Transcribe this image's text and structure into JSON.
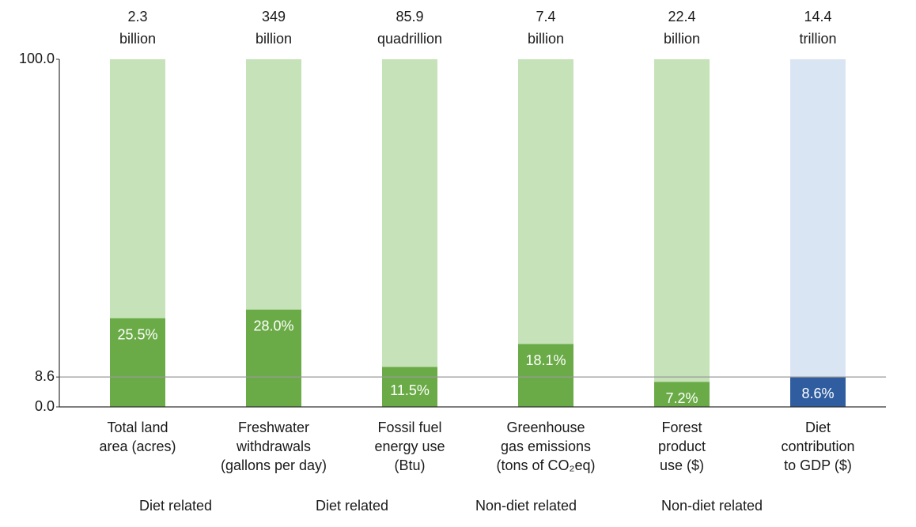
{
  "chart_data": {
    "type": "bar",
    "categories": [
      [
        "Total land",
        "area (acres)"
      ],
      [
        "Freshwater",
        "withdrawals",
        "(gallons per day)"
      ],
      [
        "Fossil fuel",
        "energy use",
        "(Btu)"
      ],
      [
        "Greenhouse",
        "gas emissions",
        "(tons of CO₂eq)"
      ],
      [
        "Forest",
        "product",
        "use ($)"
      ],
      [
        "Diet",
        "contribution",
        "to GDP ($)"
      ]
    ],
    "totals": [
      [
        "2.3",
        "billion"
      ],
      [
        "349",
        "billion"
      ],
      [
        "85.9",
        "quadrillion"
      ],
      [
        "7.4",
        "billion"
      ],
      [
        "22.4",
        "billion"
      ],
      [
        "14.4",
        "trillion"
      ]
    ],
    "values": [
      25.5,
      28.0,
      11.5,
      18.1,
      7.2,
      8.6
    ],
    "value_labels": [
      "25.5%",
      "28.0%",
      "11.5%",
      "18.1%",
      "7.2%",
      "8.6%"
    ],
    "colors": [
      "#6aab47",
      "#6aab47",
      "#6aab47",
      "#6aab47",
      "#6aab47",
      "#2f5d9f"
    ],
    "background_colors": [
      "#c6e2b9",
      "#c6e2b9",
      "#c6e2b9",
      "#c6e2b9",
      "#c6e2b9",
      "#dae5f3"
    ],
    "groups": [
      "Diet related",
      "Diet related",
      "Non-diet related",
      "Non-diet related"
    ],
    "ylim": [
      0,
      100
    ],
    "yticks": [
      {
        "value": 0,
        "label": "0.0"
      },
      {
        "value": 8.6,
        "label": "8.6"
      },
      {
        "value": 100,
        "label": "100.0"
      }
    ],
    "reference_line": 8.6
  }
}
